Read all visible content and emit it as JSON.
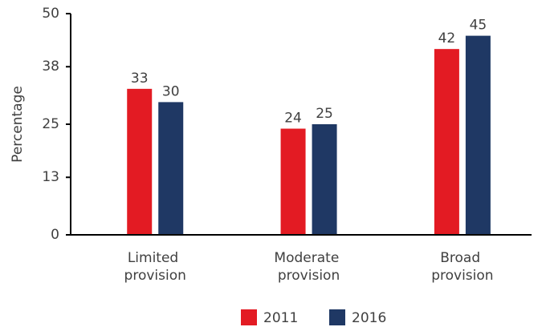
{
  "chart_data": {
    "type": "bar",
    "y_label": "Percentage",
    "categories": [
      "Limited provision",
      "Moderate provision",
      "Broad provision"
    ],
    "series": [
      {
        "name": "2011",
        "color": "#e31b23",
        "values": [
          33,
          24,
          42
        ]
      },
      {
        "name": "2016",
        "color": "#1f3864",
        "values": [
          30,
          25,
          45
        ]
      }
    ],
    "ylim": [
      0,
      50
    ],
    "yticks": [
      0,
      13,
      25,
      38,
      50
    ],
    "grid": false,
    "legend": "bottom"
  }
}
